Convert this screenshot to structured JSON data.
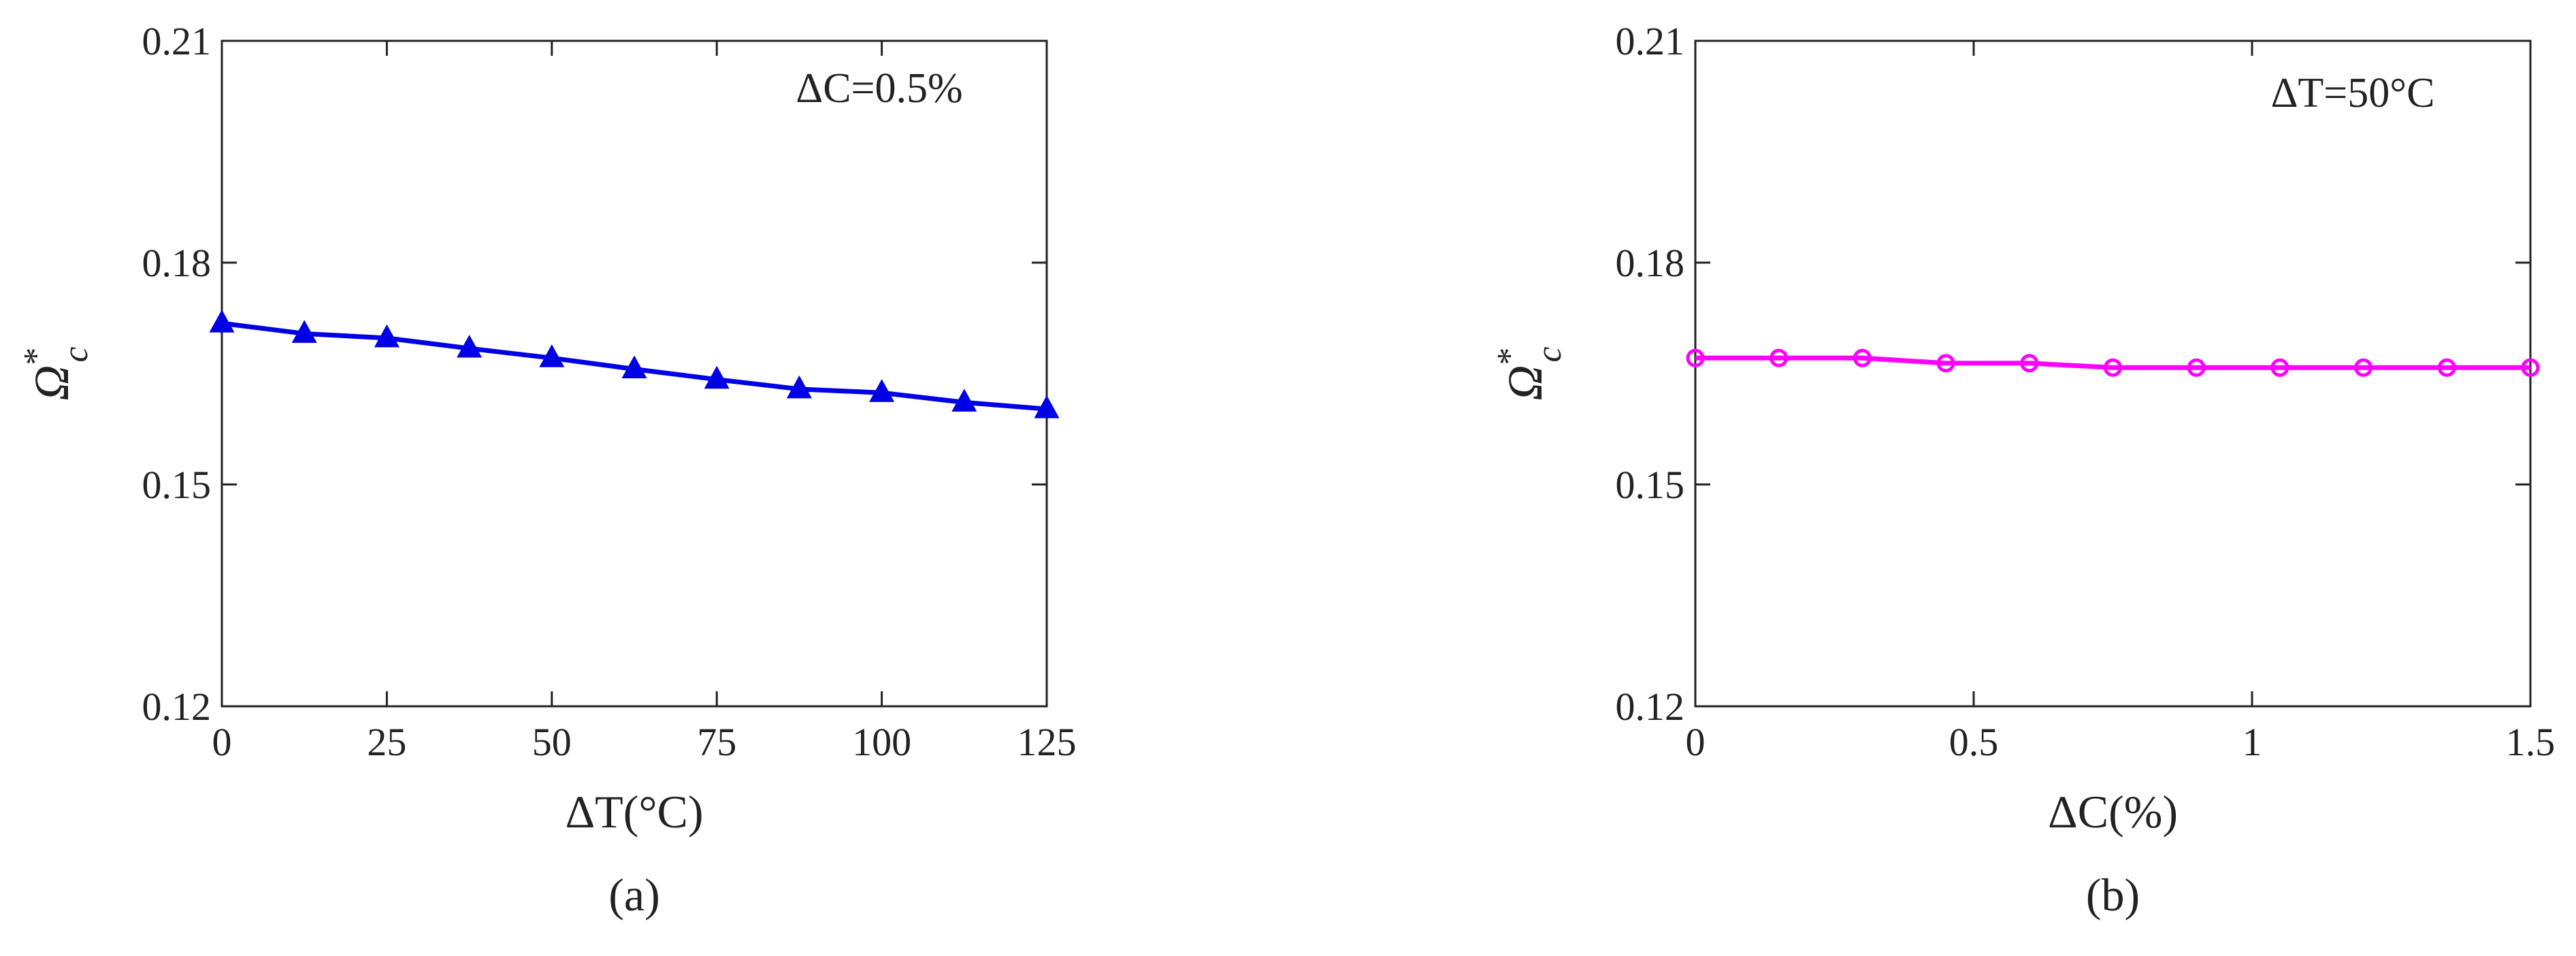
{
  "chart_data": [
    {
      "type": "line",
      "x_label": "ΔT(°C)",
      "y_label": {
        "text": "Ω",
        "superscript": "*",
        "subscript": "c"
      },
      "annotation": "ΔC=0.5%",
      "caption": "(a)",
      "x": [
        0,
        12.5,
        25,
        37.5,
        50,
        62.5,
        75,
        87.5,
        100,
        112.5,
        125
      ],
      "series": [
        {
          "color": "#0000e6",
          "marker": "triangle",
          "values": [
            0.1718,
            0.1704,
            0.1698,
            0.1684,
            0.1671,
            0.1656,
            0.1642,
            0.1629,
            0.1624,
            0.1611,
            0.1602
          ]
        }
      ],
      "xlim": [
        0,
        125
      ],
      "xticks": [
        0,
        25,
        50,
        75,
        100,
        125
      ],
      "ylim": [
        0.12,
        0.21
      ],
      "yticks": [
        0.12,
        0.15,
        0.18,
        0.21
      ]
    },
    {
      "type": "line",
      "x_label": "ΔC(%)",
      "y_label": {
        "text": "Ω",
        "superscript": "*",
        "subscript": "c"
      },
      "annotation": "ΔT=50°C",
      "caption": "(b)",
      "x": [
        0,
        0.15,
        0.3,
        0.45,
        0.6,
        0.75,
        0.9,
        1.05,
        1.2,
        1.35,
        1.5
      ],
      "series": [
        {
          "color": "#ff00ff",
          "marker": "circle",
          "values": [
            0.1671,
            0.1671,
            0.1671,
            0.1664,
            0.1664,
            0.1658,
            0.1658,
            0.1658,
            0.1658,
            0.1658,
            0.1658
          ]
        }
      ],
      "xlim": [
        0,
        1.5
      ],
      "xticks": [
        0,
        0.5,
        1,
        1.5
      ],
      "ylim": [
        0.12,
        0.21
      ],
      "yticks": [
        0.12,
        0.15,
        0.18,
        0.21
      ]
    }
  ]
}
